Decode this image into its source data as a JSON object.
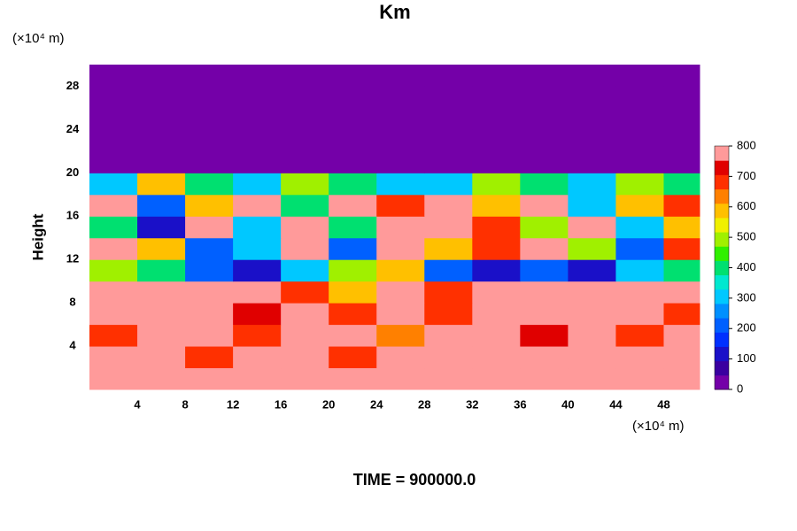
{
  "chart_data": {
    "type": "heatmap",
    "title": "Km",
    "x_unit": "(×10⁴ m)",
    "y_unit": "(×10⁴ m)",
    "ylabel": "Height",
    "footer": "TIME = 900000.0",
    "x": [
      2,
      6,
      10,
      14,
      18,
      22,
      26,
      30,
      34,
      38,
      42,
      46,
      50
    ],
    "y": [
      1,
      3,
      5,
      7,
      9,
      11,
      13,
      15,
      17,
      19,
      21,
      23,
      25,
      27,
      29
    ],
    "z": [
      [
        800,
        800,
        800,
        800,
        800,
        800,
        800,
        800,
        800,
        800,
        800,
        800,
        800
      ],
      [
        800,
        800,
        700,
        800,
        800,
        700,
        800,
        800,
        800,
        800,
        800,
        800,
        800
      ],
      [
        700,
        800,
        800,
        700,
        800,
        800,
        650,
        800,
        800,
        750,
        800,
        700,
        800
      ],
      [
        800,
        800,
        800,
        750,
        800,
        700,
        800,
        700,
        800,
        800,
        800,
        800,
        700
      ],
      [
        800,
        800,
        800,
        800,
        700,
        600,
        800,
        700,
        800,
        800,
        800,
        800,
        800
      ],
      [
        500,
        400,
        200,
        100,
        300,
        500,
        600,
        200,
        100,
        200,
        100,
        300,
        400
      ],
      [
        800,
        600,
        200,
        300,
        800,
        200,
        800,
        600,
        700,
        800,
        500,
        200,
        700
      ],
      [
        400,
        100,
        800,
        300,
        800,
        400,
        800,
        800,
        700,
        500,
        800,
        300,
        600
      ],
      [
        800,
        200,
        600,
        800,
        400,
        800,
        700,
        800,
        600,
        800,
        300,
        600,
        700
      ],
      [
        300,
        600,
        400,
        300,
        500,
        400,
        300,
        300,
        500,
        400,
        300,
        500,
        400
      ],
      [
        0,
        0,
        0,
        0,
        0,
        0,
        0,
        0,
        0,
        0,
        0,
        0,
        0
      ],
      [
        0,
        0,
        0,
        0,
        0,
        0,
        0,
        0,
        0,
        0,
        0,
        0,
        0
      ],
      [
        0,
        0,
        0,
        0,
        0,
        0,
        0,
        0,
        0,
        0,
        0,
        0,
        0
      ],
      [
        0,
        0,
        0,
        0,
        0,
        0,
        0,
        0,
        0,
        0,
        0,
        0,
        0
      ],
      [
        0,
        0,
        0,
        0,
        0,
        0,
        0,
        0,
        0,
        0,
        0,
        0,
        0
      ]
    ],
    "xlim": [
      0,
      51
    ],
    "ylim": [
      0,
      30
    ],
    "xticks": [
      4,
      8,
      12,
      16,
      20,
      24,
      28,
      32,
      36,
      40,
      44,
      48
    ],
    "yticks": [
      4,
      8,
      12,
      16,
      20,
      24,
      28
    ],
    "zlim": [
      0,
      800
    ],
    "zticks": [
      0,
      100,
      200,
      300,
      400,
      500,
      600,
      700,
      800
    ],
    "colorscale": [
      "#7400a8",
      "#3a00a0",
      "#1a10c8",
      "#0030ff",
      "#0060ff",
      "#0090ff",
      "#00c8ff",
      "#00e8d0",
      "#00e070",
      "#30f000",
      "#a0f000",
      "#f0f000",
      "#ffc000",
      "#ff8000",
      "#ff3000",
      "#e00000",
      "#ff9a9a"
    ]
  }
}
